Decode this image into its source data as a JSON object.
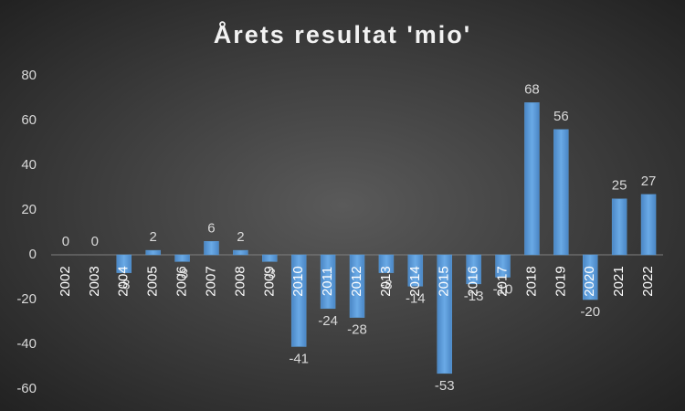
{
  "chart_data": {
    "type": "bar",
    "title": "Årets resultat 'mio'",
    "categories": [
      "2002",
      "2003",
      "2004",
      "2005",
      "2006",
      "2007",
      "2008",
      "2009",
      "2010",
      "2011",
      "2012",
      "2013",
      "2014",
      "2015",
      "2016",
      "2017",
      "2018",
      "2019",
      "2020",
      "2021",
      "2022"
    ],
    "values": [
      0,
      0,
      -8,
      2,
      -3,
      6,
      2,
      -3,
      -41,
      -24,
      -28,
      -8,
      -14,
      -53,
      -13,
      -10,
      68,
      56,
      -20,
      25,
      27
    ],
    "color": "#5b9bd5",
    "ylim": [
      -60,
      80
    ],
    "yticks": [
      -60,
      -40,
      -20,
      0,
      20,
      40,
      60,
      80
    ],
    "grid": false
  }
}
